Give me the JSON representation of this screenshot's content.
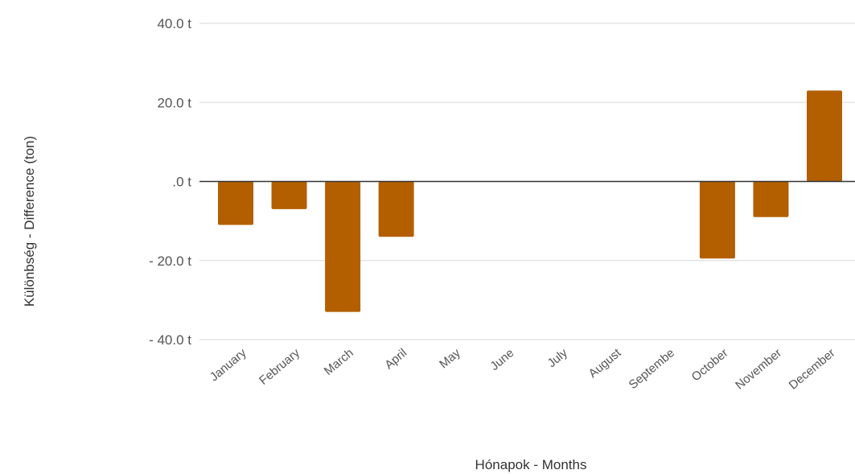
{
  "chart_data": {
    "type": "bar",
    "xlabel": "Hónapok - Months",
    "ylabel": "Különbség - Difference (ton)",
    "ylim": [
      -40,
      40
    ],
    "yticks": [
      40,
      20,
      0,
      -20,
      -40
    ],
    "ytick_labels": [
      "40.0 t",
      "20.0 t",
      ".0 t",
      "- 20.0 t",
      "- 40.0 t"
    ],
    "grid": true,
    "categories": [
      "January",
      "February",
      "March",
      "April",
      "May",
      "June",
      "July",
      "August",
      "Septembe",
      "October",
      "November",
      "December"
    ],
    "values": [
      -11,
      -7,
      -33,
      -14,
      0,
      0,
      0,
      0,
      0,
      -19.5,
      -9,
      23
    ],
    "bar_color": "#b35f00"
  }
}
